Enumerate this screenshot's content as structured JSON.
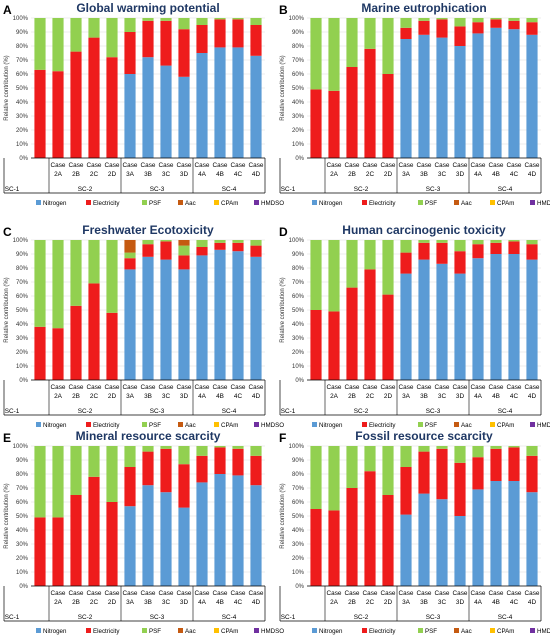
{
  "figure": {
    "categories": [
      "SC-1",
      "Case 2A",
      "Case 2B",
      "Case 2C",
      "Case 2D",
      "Case 3A",
      "Case 3B",
      "Case 3C",
      "Case 3D",
      "Case 4A",
      "Case 4B",
      "Case 4C",
      "Case 4D"
    ],
    "category_top": [
      "",
      "Case",
      "Case",
      "Case",
      "Case",
      "Case",
      "Case",
      "Case",
      "Case",
      "Case",
      "Case",
      "Case",
      "Case"
    ],
    "category_bottom": [
      "",
      "2A",
      "2B",
      "2C",
      "2D",
      "3A",
      "3B",
      "3C",
      "3D",
      "4A",
      "4B",
      "4C",
      "4D"
    ],
    "groups": [
      {
        "label": "SC-1",
        "span": [
          0,
          0
        ]
      },
      {
        "label": "SC-2",
        "span": [
          1,
          4
        ]
      },
      {
        "label": "SC-3",
        "span": [
          5,
          8
        ]
      },
      {
        "label": "SC-4",
        "span": [
          9,
          12
        ]
      }
    ],
    "series_names": [
      "Nitrogen",
      "Electricity",
      "PSF",
      "Aac",
      "CPAm",
      "HMDSO"
    ],
    "series_colors": [
      "#5b9bd5",
      "#ee1c1c",
      "#92d050",
      "#c55a11",
      "#ffc000",
      "#7030a0"
    ],
    "ylabel": "Relative contribution (%)",
    "yticks": [
      "0%",
      "10%",
      "20%",
      "30%",
      "40%",
      "50%",
      "60%",
      "70%",
      "80%",
      "90%",
      "100%"
    ]
  },
  "chart_data": [
    {
      "type": "bar",
      "stacked": true,
      "panel_letter": "A",
      "title": "Global warming potential",
      "ylim": [
        0,
        100
      ],
      "series": [
        {
          "name": "Nitrogen",
          "values": [
            0,
            0,
            0,
            0,
            0,
            60,
            72,
            66,
            58,
            75,
            79,
            79,
            73
          ]
        },
        {
          "name": "Electricity",
          "values": [
            63,
            62,
            76,
            86,
            72,
            30,
            26,
            32,
            34,
            20,
            20,
            20,
            22
          ]
        },
        {
          "name": "PSF",
          "values": [
            37,
            38,
            24,
            14,
            28,
            10,
            2,
            2,
            8,
            5,
            1,
            1,
            5
          ]
        },
        {
          "name": "Aac",
          "values": [
            0,
            0,
            0,
            0,
            0,
            0,
            0,
            0,
            0,
            0,
            0,
            0,
            0
          ]
        },
        {
          "name": "CPAm",
          "values": [
            0,
            0,
            0,
            0,
            0,
            0,
            0,
            0,
            0,
            0,
            0,
            0,
            0
          ]
        },
        {
          "name": "HMDSO",
          "values": [
            0,
            0,
            0,
            0,
            0,
            0,
            0,
            0,
            0,
            0,
            0,
            0,
            0
          ]
        }
      ]
    },
    {
      "type": "bar",
      "stacked": true,
      "panel_letter": "B",
      "title": "Marine eutrophication",
      "ylim": [
        0,
        100
      ],
      "series": [
        {
          "name": "Nitrogen",
          "values": [
            0,
            0,
            0,
            0,
            0,
            85,
            88,
            86,
            80,
            89,
            93,
            92,
            88
          ]
        },
        {
          "name": "Electricity",
          "values": [
            49,
            48,
            65,
            78,
            60,
            8,
            10,
            13,
            14,
            8,
            6,
            6,
            9
          ]
        },
        {
          "name": "PSF",
          "values": [
            51,
            52,
            35,
            22,
            40,
            7,
            2,
            1,
            6,
            3,
            1,
            2,
            3
          ]
        },
        {
          "name": "Aac",
          "values": [
            0,
            0,
            0,
            0,
            0,
            0,
            0,
            0,
            0,
            0,
            0,
            0,
            0
          ]
        },
        {
          "name": "CPAm",
          "values": [
            0,
            0,
            0,
            0,
            0,
            0,
            0,
            0,
            0,
            0,
            0,
            0,
            0
          ]
        },
        {
          "name": "HMDSO",
          "values": [
            0,
            0,
            0,
            0,
            0,
            0,
            0,
            0,
            0,
            0,
            0,
            0,
            0
          ]
        }
      ]
    },
    {
      "type": "bar",
      "stacked": true,
      "panel_letter": "C",
      "title": "Freshwater Ecotoxicity",
      "ylim": [
        0,
        100
      ],
      "series": [
        {
          "name": "Nitrogen",
          "values": [
            0,
            0,
            0,
            0,
            0,
            79,
            88,
            86,
            79,
            89,
            93,
            92,
            88
          ]
        },
        {
          "name": "Electricity",
          "values": [
            38,
            37,
            53,
            69,
            48,
            8,
            9,
            13,
            10,
            6,
            5,
            6,
            8
          ]
        },
        {
          "name": "PSF",
          "values": [
            62,
            63,
            47,
            31,
            52,
            4,
            3,
            1,
            7,
            5,
            2,
            2,
            4
          ]
        },
        {
          "name": "Aac",
          "values": [
            0,
            0,
            0,
            0,
            0,
            9,
            0,
            0,
            4,
            0,
            0,
            0,
            0
          ]
        },
        {
          "name": "CPAm",
          "values": [
            0,
            0,
            0,
            0,
            0,
            0,
            0,
            0,
            0,
            0,
            0,
            0,
            0
          ]
        },
        {
          "name": "HMDSO",
          "values": [
            0,
            0,
            0,
            0,
            0,
            0,
            0,
            0,
            0,
            0,
            0,
            0,
            0
          ]
        }
      ]
    },
    {
      "type": "bar",
      "stacked": true,
      "panel_letter": "D",
      "title": "Human carcinogenic toxicity",
      "ylim": [
        0,
        100
      ],
      "series": [
        {
          "name": "Nitrogen",
          "values": [
            0,
            0,
            0,
            0,
            0,
            76,
            86,
            83,
            76,
            87,
            90,
            90,
            86
          ]
        },
        {
          "name": "Electricity",
          "values": [
            50,
            49,
            66,
            79,
            61,
            15,
            12,
            15,
            16,
            10,
            8,
            9,
            11
          ]
        },
        {
          "name": "PSF",
          "values": [
            50,
            51,
            34,
            21,
            39,
            9,
            2,
            2,
            8,
            3,
            2,
            1,
            3
          ]
        },
        {
          "name": "Aac",
          "values": [
            0,
            0,
            0,
            0,
            0,
            0,
            0,
            0,
            0,
            0,
            0,
            0,
            0
          ]
        },
        {
          "name": "CPAm",
          "values": [
            0,
            0,
            0,
            0,
            0,
            0,
            0,
            0,
            0,
            0,
            0,
            0,
            0
          ]
        },
        {
          "name": "HMDSO",
          "values": [
            0,
            0,
            0,
            0,
            0,
            0,
            0,
            0,
            0,
            0,
            0,
            0,
            0
          ]
        }
      ]
    },
    {
      "type": "bar",
      "stacked": true,
      "panel_letter": "E",
      "title": "Mineral resource scarcity",
      "ylim": [
        0,
        100
      ],
      "series": [
        {
          "name": "Nitrogen",
          "values": [
            0,
            0,
            0,
            0,
            0,
            57,
            72,
            67,
            56,
            74,
            80,
            79,
            72
          ]
        },
        {
          "name": "Electricity",
          "values": [
            49,
            49,
            65,
            78,
            60,
            28,
            24,
            31,
            31,
            19,
            19,
            19,
            21
          ]
        },
        {
          "name": "PSF",
          "values": [
            51,
            51,
            35,
            22,
            40,
            15,
            4,
            2,
            13,
            7,
            1,
            2,
            7
          ]
        },
        {
          "name": "Aac",
          "values": [
            0,
            0,
            0,
            0,
            0,
            0,
            0,
            0,
            0,
            0,
            0,
            0,
            0
          ]
        },
        {
          "name": "CPAm",
          "values": [
            0,
            0,
            0,
            0,
            0,
            0,
            0,
            0,
            0,
            0,
            0,
            0,
            0
          ]
        },
        {
          "name": "HMDSO",
          "values": [
            0,
            0,
            0,
            0,
            0,
            0,
            0,
            0,
            0,
            0,
            0,
            0,
            0
          ]
        }
      ]
    },
    {
      "type": "bar",
      "stacked": true,
      "panel_letter": "F",
      "title": "Fossil resource scarcity",
      "ylim": [
        0,
        100
      ],
      "series": [
        {
          "name": "Nitrogen",
          "values": [
            0,
            0,
            0,
            0,
            0,
            51,
            66,
            62,
            50,
            69,
            75,
            75,
            67
          ]
        },
        {
          "name": "Electricity",
          "values": [
            55,
            54,
            70,
            82,
            65,
            34,
            30,
            36,
            38,
            23,
            23,
            24,
            26
          ]
        },
        {
          "name": "PSF",
          "values": [
            45,
            46,
            30,
            18,
            35,
            15,
            4,
            2,
            12,
            8,
            2,
            1,
            7
          ]
        },
        {
          "name": "Aac",
          "values": [
            0,
            0,
            0,
            0,
            0,
            0,
            0,
            0,
            0,
            0,
            0,
            0,
            0
          ]
        },
        {
          "name": "CPAm",
          "values": [
            0,
            0,
            0,
            0,
            0,
            0,
            0,
            0,
            0,
            0,
            0,
            0,
            0
          ]
        },
        {
          "name": "HMDSO",
          "values": [
            0,
            0,
            0,
            0,
            0,
            0,
            0,
            0,
            0,
            0,
            0,
            0,
            0
          ]
        }
      ]
    }
  ]
}
